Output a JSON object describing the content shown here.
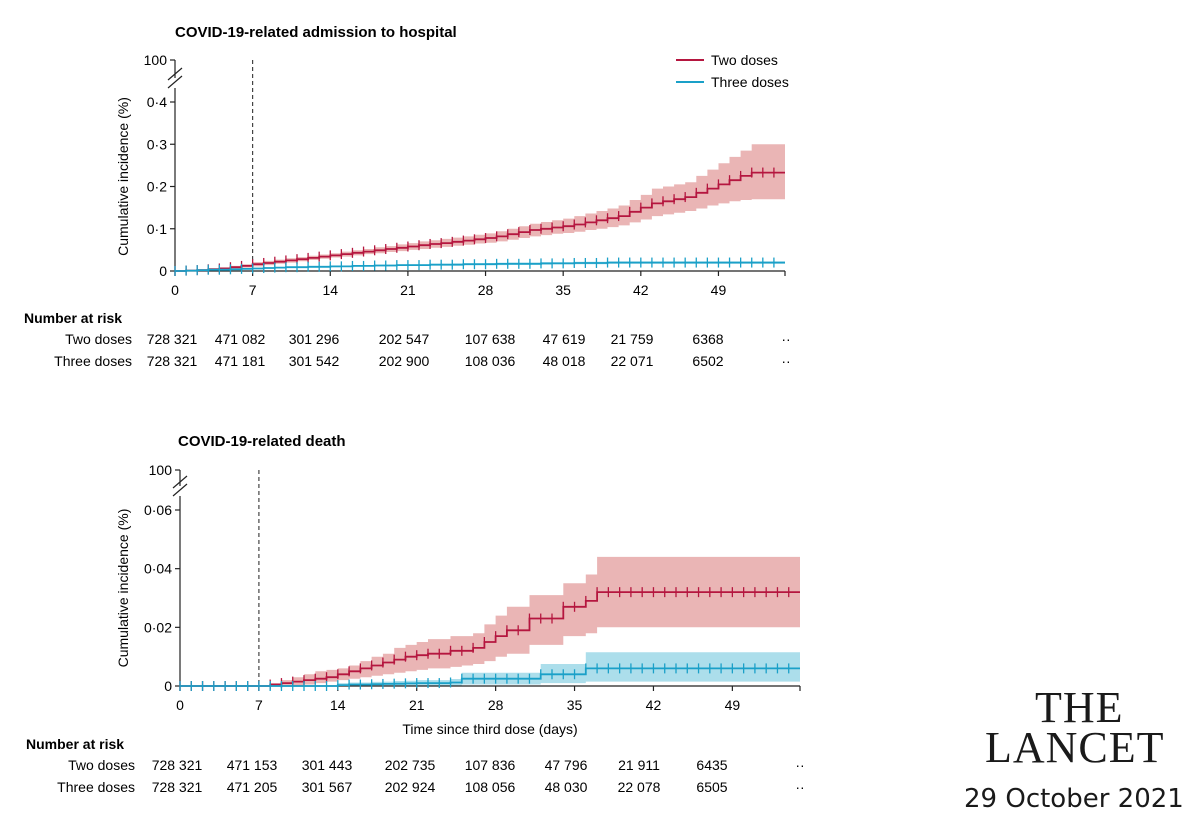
{
  "chart_data": [
    {
      "type": "line",
      "title": "COVID-19-related admission to hospital",
      "ylabel": "Cumulative incidence (%)",
      "xlabel": "",
      "xlim": [
        0,
        55
      ],
      "ylim": [
        0,
        0.4
      ],
      "break_top_label": "100",
      "xticks": [
        0,
        7,
        14,
        21,
        28,
        35,
        42,
        49
      ],
      "yticks": [
        0,
        0.1,
        0.2,
        0.3,
        0.4
      ],
      "ytick_labels": [
        "0",
        "0·1",
        "0·2",
        "0·3",
        "0·4"
      ],
      "vline_x": 7,
      "legend": [
        "Two doses",
        "Three doses"
      ],
      "series": [
        {
          "name": "Two doses",
          "color": "#b5163f",
          "band_color": "#e6a8a8",
          "x": [
            0,
            1,
            2,
            3,
            4,
            5,
            6,
            7,
            8,
            9,
            10,
            11,
            12,
            13,
            14,
            15,
            16,
            17,
            18,
            19,
            20,
            21,
            22,
            23,
            24,
            25,
            26,
            27,
            28,
            29,
            30,
            31,
            32,
            33,
            34,
            35,
            36,
            37,
            38,
            39,
            40,
            41,
            42,
            43,
            44,
            45,
            46,
            47,
            48,
            49,
            50,
            51,
            52,
            53,
            54
          ],
          "values": [
            0,
            0.001,
            0.002,
            0.004,
            0.006,
            0.009,
            0.012,
            0.016,
            0.019,
            0.022,
            0.025,
            0.028,
            0.031,
            0.034,
            0.037,
            0.04,
            0.043,
            0.046,
            0.049,
            0.052,
            0.055,
            0.058,
            0.061,
            0.064,
            0.066,
            0.069,
            0.072,
            0.075,
            0.078,
            0.082,
            0.087,
            0.092,
            0.097,
            0.1,
            0.103,
            0.106,
            0.11,
            0.115,
            0.12,
            0.125,
            0.13,
            0.14,
            0.15,
            0.16,
            0.165,
            0.17,
            0.175,
            0.185,
            0.195,
            0.205,
            0.215,
            0.225,
            0.233,
            0.233,
            0.233
          ],
          "lower": [
            0,
            0,
            0.001,
            0.002,
            0.004,
            0.006,
            0.008,
            0.011,
            0.014,
            0.017,
            0.02,
            0.023,
            0.026,
            0.029,
            0.032,
            0.034,
            0.037,
            0.04,
            0.042,
            0.045,
            0.047,
            0.05,
            0.052,
            0.055,
            0.057,
            0.06,
            0.062,
            0.065,
            0.067,
            0.07,
            0.074,
            0.078,
            0.082,
            0.085,
            0.088,
            0.09,
            0.093,
            0.097,
            0.1,
            0.104,
            0.108,
            0.115,
            0.122,
            0.13,
            0.134,
            0.138,
            0.142,
            0.148,
            0.155,
            0.16,
            0.165,
            0.168,
            0.17,
            0.17,
            0.17
          ],
          "upper": [
            0.002,
            0.003,
            0.004,
            0.007,
            0.009,
            0.012,
            0.016,
            0.021,
            0.024,
            0.027,
            0.03,
            0.033,
            0.036,
            0.039,
            0.042,
            0.046,
            0.049,
            0.052,
            0.056,
            0.059,
            0.063,
            0.066,
            0.07,
            0.073,
            0.076,
            0.079,
            0.082,
            0.086,
            0.089,
            0.094,
            0.1,
            0.106,
            0.112,
            0.116,
            0.12,
            0.124,
            0.13,
            0.136,
            0.142,
            0.148,
            0.155,
            0.168,
            0.18,
            0.195,
            0.2,
            0.205,
            0.21,
            0.225,
            0.24,
            0.255,
            0.27,
            0.285,
            0.3,
            0.3,
            0.3
          ]
        },
        {
          "name": "Three doses",
          "color": "#1aa0c8",
          "band_color": "#9ed8e8",
          "x": [
            0,
            1,
            2,
            3,
            4,
            5,
            6,
            7,
            8,
            9,
            10,
            11,
            12,
            13,
            14,
            15,
            16,
            17,
            18,
            19,
            20,
            21,
            22,
            23,
            24,
            25,
            26,
            27,
            28,
            29,
            30,
            31,
            32,
            33,
            34,
            35,
            36,
            37,
            38,
            39,
            40,
            41,
            42,
            43,
            44,
            45,
            46,
            47,
            48,
            49,
            50,
            51,
            52,
            53,
            54
          ],
          "values": [
            0,
            0.001,
            0.002,
            0.003,
            0.003,
            0.004,
            0.005,
            0.006,
            0.007,
            0.008,
            0.009,
            0.009,
            0.01,
            0.01,
            0.011,
            0.011,
            0.012,
            0.012,
            0.013,
            0.013,
            0.014,
            0.014,
            0.014,
            0.015,
            0.015,
            0.015,
            0.016,
            0.016,
            0.016,
            0.017,
            0.017,
            0.017,
            0.017,
            0.018,
            0.018,
            0.018,
            0.019,
            0.019,
            0.019,
            0.02,
            0.02,
            0.02,
            0.02,
            0.02,
            0.02,
            0.02,
            0.02,
            0.02,
            0.02,
            0.02,
            0.02,
            0.02,
            0.02,
            0.02,
            0.02
          ],
          "lower": [
            0,
            0,
            0.001,
            0.002,
            0.002,
            0.003,
            0.004,
            0.005,
            0.006,
            0.007,
            0.007,
            0.008,
            0.008,
            0.009,
            0.009,
            0.01,
            0.01,
            0.011,
            0.011,
            0.011,
            0.012,
            0.012,
            0.012,
            0.013,
            0.013,
            0.013,
            0.014,
            0.014,
            0.014,
            0.014,
            0.015,
            0.015,
            0.015,
            0.015,
            0.016,
            0.016,
            0.016,
            0.016,
            0.016,
            0.017,
            0.017,
            0.017,
            0.017,
            0.017,
            0.017,
            0.017,
            0.017,
            0.017,
            0.017,
            0.017,
            0.017,
            0.017,
            0.017,
            0.017,
            0.017
          ],
          "upper": [
            0.001,
            0.002,
            0.003,
            0.004,
            0.004,
            0.005,
            0.006,
            0.007,
            0.008,
            0.009,
            0.01,
            0.011,
            0.012,
            0.012,
            0.013,
            0.013,
            0.014,
            0.014,
            0.015,
            0.015,
            0.016,
            0.016,
            0.016,
            0.017,
            0.017,
            0.018,
            0.018,
            0.018,
            0.019,
            0.019,
            0.02,
            0.02,
            0.02,
            0.021,
            0.021,
            0.021,
            0.022,
            0.022,
            0.022,
            0.023,
            0.023,
            0.023,
            0.023,
            0.023,
            0.023,
            0.023,
            0.023,
            0.023,
            0.023,
            0.023,
            0.023,
            0.023,
            0.023,
            0.023,
            0.023
          ]
        }
      ],
      "number_at_risk": {
        "header": "Number at risk",
        "rows": [
          {
            "label": "Two doses",
            "values": [
              "728 321",
              "471 082",
              "301 296",
              "202 547",
              "107 638",
              "47 619",
              "21 759",
              "6368",
              "··"
            ]
          },
          {
            "label": "Three doses",
            "values": [
              "728 321",
              "471 181",
              "301 542",
              "202 900",
              "108 036",
              "48 018",
              "22 071",
              "6502",
              "··"
            ]
          }
        ]
      }
    },
    {
      "type": "line",
      "title": "COVID-19-related death",
      "ylabel": "Cumulative incidence (%)",
      "xlabel": "Time since third dose (days)",
      "xlim": [
        0,
        55
      ],
      "ylim": [
        0,
        0.06
      ],
      "break_top_label": "100",
      "xticks": [
        0,
        7,
        14,
        21,
        28,
        35,
        42,
        49
      ],
      "yticks": [
        0,
        0.02,
        0.04,
        0.06
      ],
      "ytick_labels": [
        "0",
        "0·02",
        "0·04",
        "0·06"
      ],
      "vline_x": 7,
      "series": [
        {
          "name": "Two doses",
          "color": "#b5163f",
          "band_color": "#e6a8a8",
          "x": [
            0,
            1,
            2,
            3,
            4,
            5,
            6,
            7,
            8,
            9,
            10,
            11,
            12,
            13,
            14,
            15,
            16,
            17,
            18,
            19,
            20,
            21,
            22,
            23,
            24,
            25,
            26,
            27,
            28,
            29,
            30,
            31,
            32,
            33,
            34,
            35,
            36,
            37,
            38,
            39,
            40,
            41,
            42,
            43,
            44,
            45,
            46,
            47,
            48,
            49,
            50,
            51,
            52,
            53,
            54
          ],
          "values": [
            0,
            0,
            0,
            0,
            0,
            0,
            0,
            0,
            0.0005,
            0.001,
            0.0015,
            0.002,
            0.0025,
            0.003,
            0.004,
            0.005,
            0.006,
            0.007,
            0.008,
            0.009,
            0.01,
            0.0105,
            0.011,
            0.011,
            0.012,
            0.012,
            0.013,
            0.015,
            0.017,
            0.019,
            0.019,
            0.023,
            0.023,
            0.023,
            0.027,
            0.027,
            0.029,
            0.032,
            0.032,
            0.032,
            0.032,
            0.032,
            0.032,
            0.032,
            0.032,
            0.032,
            0.032,
            0.032,
            0.032,
            0.032,
            0.032,
            0.032,
            0.032,
            0.032,
            0.032
          ],
          "lower": [
            0,
            0,
            0,
            0,
            0,
            0,
            0,
            0,
            0,
            0,
            0,
            0.0005,
            0.001,
            0.0015,
            0.002,
            0.0025,
            0.003,
            0.0035,
            0.004,
            0.0045,
            0.005,
            0.0055,
            0.006,
            0.006,
            0.0065,
            0.007,
            0.0075,
            0.0085,
            0.01,
            0.011,
            0.011,
            0.014,
            0.014,
            0.014,
            0.017,
            0.017,
            0.018,
            0.02,
            0.02,
            0.02,
            0.02,
            0.02,
            0.02,
            0.02,
            0.02,
            0.02,
            0.02,
            0.02,
            0.02,
            0.02,
            0.02,
            0.02,
            0.02,
            0.02,
            0.02
          ],
          "upper": [
            0,
            0,
            0,
            0,
            0,
            0,
            0,
            0,
            0.001,
            0.002,
            0.003,
            0.004,
            0.005,
            0.0055,
            0.006,
            0.007,
            0.0085,
            0.01,
            0.011,
            0.013,
            0.014,
            0.015,
            0.016,
            0.016,
            0.017,
            0.017,
            0.018,
            0.021,
            0.024,
            0.027,
            0.027,
            0.031,
            0.031,
            0.031,
            0.035,
            0.035,
            0.038,
            0.044,
            0.044,
            0.044,
            0.044,
            0.044,
            0.044,
            0.044,
            0.044,
            0.044,
            0.044,
            0.044,
            0.044,
            0.044,
            0.044,
            0.044,
            0.044,
            0.044,
            0.044
          ]
        },
        {
          "name": "Three doses",
          "color": "#1aa0c8",
          "band_color": "#9ed8e8",
          "x": [
            0,
            1,
            2,
            3,
            4,
            5,
            6,
            7,
            8,
            9,
            10,
            11,
            12,
            13,
            14,
            15,
            16,
            17,
            18,
            19,
            20,
            21,
            22,
            23,
            24,
            25,
            26,
            27,
            28,
            29,
            30,
            31,
            32,
            33,
            34,
            35,
            36,
            37,
            38,
            39,
            40,
            41,
            42,
            43,
            44,
            45,
            46,
            47,
            48,
            49,
            50,
            51,
            52,
            53,
            54
          ],
          "values": [
            0,
            0,
            0,
            0,
            0,
            0,
            0,
            0,
            0,
            0,
            0,
            0,
            0,
            0,
            0.0003,
            0.0005,
            0.0005,
            0.0006,
            0.0007,
            0.0008,
            0.0009,
            0.001,
            0.001,
            0.001,
            0.0012,
            0.0025,
            0.0025,
            0.0025,
            0.0025,
            0.0025,
            0.0025,
            0.0025,
            0.004,
            0.004,
            0.004,
            0.004,
            0.006,
            0.006,
            0.006,
            0.006,
            0.006,
            0.006,
            0.006,
            0.006,
            0.006,
            0.006,
            0.006,
            0.006,
            0.006,
            0.006,
            0.006,
            0.006,
            0.006,
            0.006,
            0.006
          ],
          "lower": [
            0,
            0,
            0,
            0,
            0,
            0,
            0,
            0,
            0,
            0,
            0,
            0,
            0,
            0,
            0,
            0,
            0,
            0,
            0,
            0,
            0,
            0,
            0,
            0,
            0,
            0.0005,
            0.0005,
            0.0005,
            0.0005,
            0.0005,
            0.0005,
            0.0005,
            0.001,
            0.001,
            0.001,
            0.001,
            0.0015,
            0.0015,
            0.0015,
            0.0015,
            0.0015,
            0.0015,
            0.0015,
            0.0015,
            0.0015,
            0.0015,
            0.0015,
            0.0015,
            0.0015,
            0.0015,
            0.0015,
            0.0015,
            0.0015,
            0.0015,
            0.0015
          ],
          "upper": [
            0,
            0,
            0,
            0,
            0,
            0,
            0,
            0,
            0,
            0,
            0,
            0,
            0,
            0,
            0.001,
            0.0012,
            0.0012,
            0.0014,
            0.0015,
            0.0017,
            0.0018,
            0.002,
            0.002,
            0.002,
            0.0024,
            0.0045,
            0.0045,
            0.0045,
            0.0045,
            0.0045,
            0.0045,
            0.0045,
            0.0075,
            0.0075,
            0.0075,
            0.0075,
            0.0115,
            0.0115,
            0.0115,
            0.0115,
            0.0115,
            0.0115,
            0.0115,
            0.0115,
            0.0115,
            0.0115,
            0.0115,
            0.0115,
            0.0115,
            0.0115,
            0.0115,
            0.0115,
            0.0115,
            0.0115,
            0.0115
          ]
        }
      ],
      "number_at_risk": {
        "header": "Number at risk",
        "rows": [
          {
            "label": "Two doses",
            "values": [
              "728 321",
              "471 153",
              "301 443",
              "202 735",
              "107 836",
              "47 796",
              "21 911",
              "6435",
              "··"
            ]
          },
          {
            "label": "Three doses",
            "values": [
              "728 321",
              "471 205",
              "301 567",
              "202 924",
              "108 056",
              "48 030",
              "22 078",
              "6505",
              "··"
            ]
          }
        ]
      }
    }
  ],
  "branding": {
    "logo_line1": "THE",
    "logo_line2": "LANCET",
    "date": "29 October 2021"
  }
}
